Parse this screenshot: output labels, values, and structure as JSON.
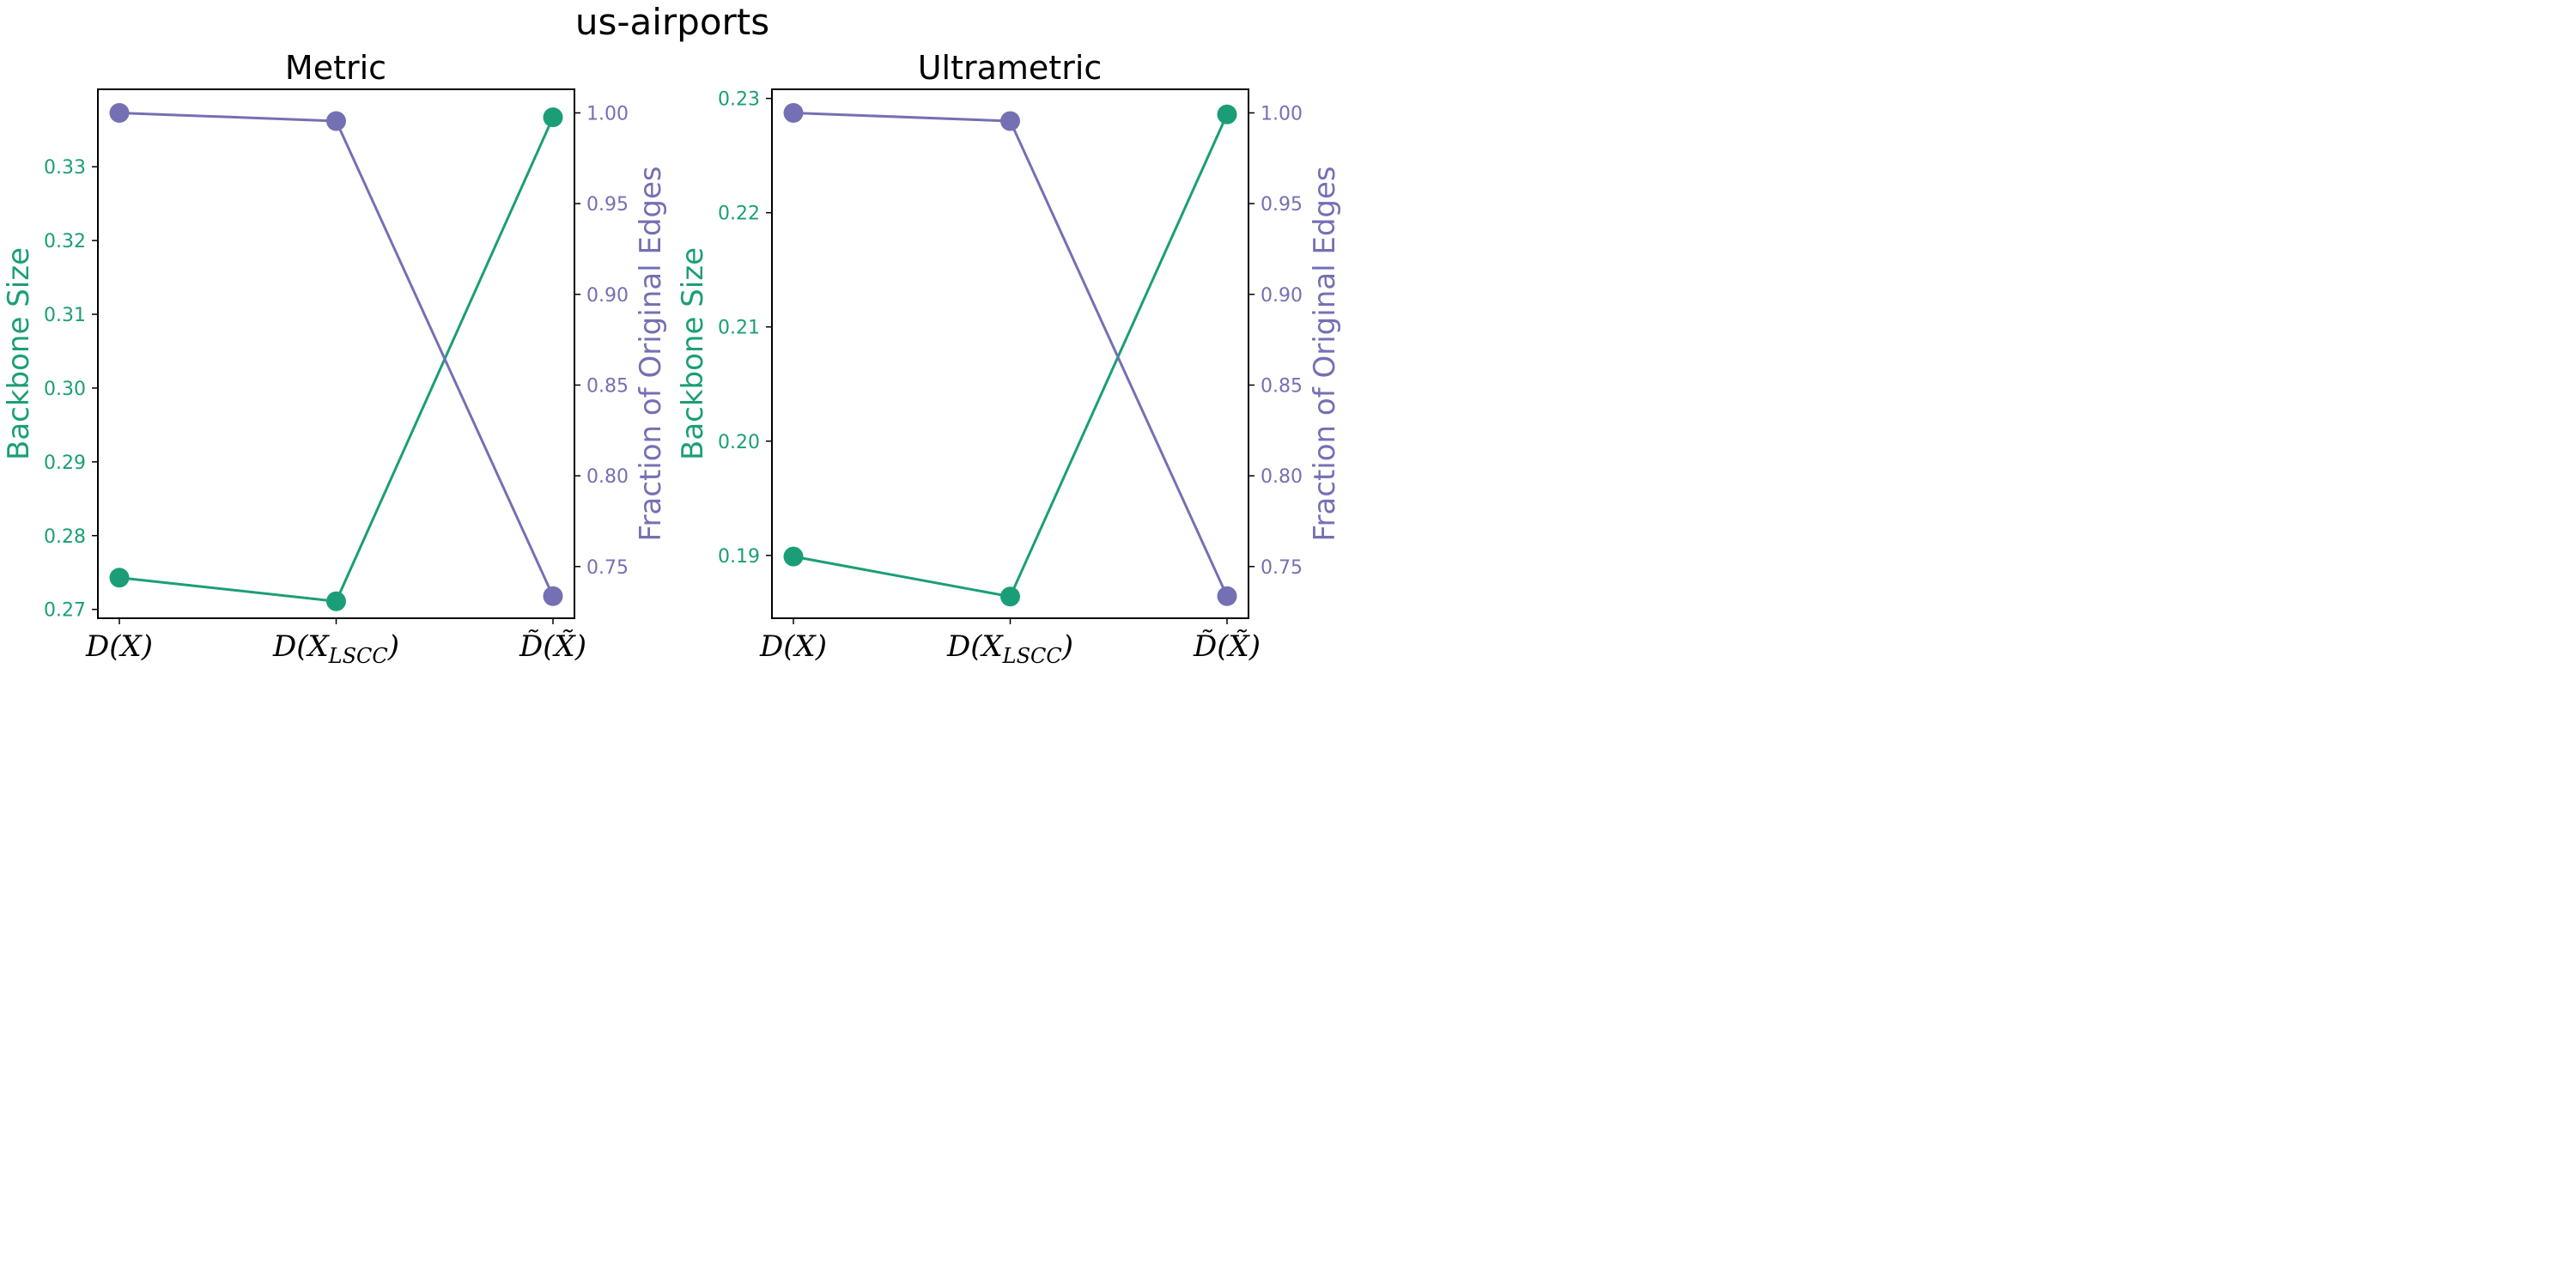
{
  "figure": {
    "suptitle": "us-airports"
  },
  "colors": {
    "size": "#1b9e77",
    "edges": "#7570b3",
    "axis": "#000000"
  },
  "chart_data": [
    {
      "type": "line",
      "title": "Metric",
      "categories": [
        "D(X)",
        "D(X_LSCC)",
        "D̃(X̃)"
      ],
      "ylabel_left": "Backbone Size",
      "ylabel_right": "Fraction of Original Edges",
      "ylim_left": [
        0.2688,
        0.3405
      ],
      "yticks_left": [
        "0.27",
        "0.28",
        "0.29",
        "0.30",
        "0.31",
        "0.32",
        "0.33"
      ],
      "ylim_right": [
        0.7215,
        1.013
      ],
      "yticks_right": [
        "0.75",
        "0.80",
        "0.85",
        "0.90",
        "0.95",
        "1.00"
      ],
      "series": [
        {
          "name": "Backbone Size",
          "axis": "left",
          "values": [
            0.2743,
            0.2711,
            0.3367
          ]
        },
        {
          "name": "Fraction of Original Edges",
          "axis": "right",
          "values": [
            1.0,
            0.9955,
            0.7337
          ]
        }
      ]
    },
    {
      "type": "line",
      "title": "Ultrametric",
      "categories": [
        "D(X)",
        "D(X_LSCC)",
        "D̃(X̃)"
      ],
      "ylabel_left": "Backbone Size",
      "ylabel_right": "Fraction of Original Edges",
      "ylim_left": [
        0.1845,
        0.2308
      ],
      "yticks_left": [
        "0.19",
        "0.20",
        "0.21",
        "0.22",
        "0.23"
      ],
      "ylim_right": [
        0.7215,
        1.013
      ],
      "yticks_right": [
        "0.75",
        "0.80",
        "0.85",
        "0.90",
        "0.95",
        "1.00"
      ],
      "series": [
        {
          "name": "Backbone Size",
          "axis": "left",
          "values": [
            0.1899,
            0.1864,
            0.2286
          ]
        },
        {
          "name": "Fraction of Original Edges",
          "axis": "right",
          "values": [
            1.0,
            0.9955,
            0.7337
          ]
        }
      ]
    }
  ]
}
